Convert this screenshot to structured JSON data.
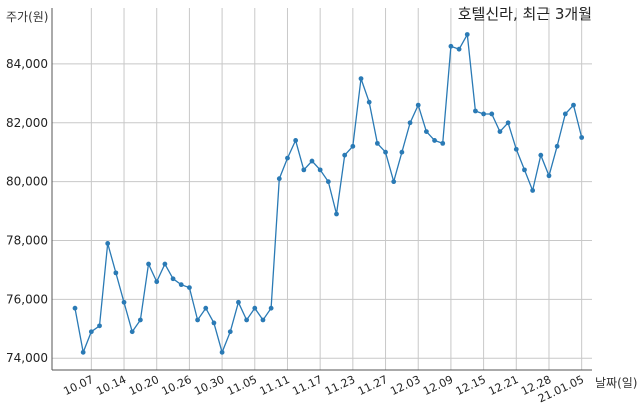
{
  "chart_data": {
    "type": "line",
    "title": "호텔신라, 최근 3개월",
    "ylabel": "주가(원)",
    "xlabel": "날짜(일)",
    "ylim": [
      73600,
      85900
    ],
    "yticks": [
      74000,
      76000,
      78000,
      80000,
      82000,
      84000
    ],
    "ytick_labels": [
      "74,000",
      "76,000",
      "78,000",
      "80,000",
      "82,000",
      "84,000"
    ],
    "xtick_labels": [
      "10.07",
      "10.14",
      "10.20",
      "10.26",
      "10.30",
      "11.05",
      "11.11",
      "11.17",
      "11.23",
      "11.27",
      "12.03",
      "12.09",
      "12.15",
      "12.21",
      "12.28",
      "21.01.05"
    ],
    "xtick_positions": [
      2,
      6,
      10,
      14,
      18,
      22,
      26,
      30,
      34,
      38,
      42,
      46,
      50,
      54,
      58,
      62
    ],
    "grid": true,
    "color": "#2a7ab5",
    "values": [
      75700,
      74200,
      74900,
      75100,
      77900,
      76900,
      75900,
      74900,
      75300,
      77200,
      76600,
      77200,
      76700,
      76500,
      76400,
      75300,
      75700,
      75200,
      74200,
      74900,
      75900,
      75300,
      75700,
      75300,
      75700,
      80100,
      80800,
      81400,
      80400,
      80700,
      80400,
      80000,
      78900,
      80900,
      81200,
      83500,
      82700,
      81300,
      81000,
      80000,
      81000,
      82000,
      82600,
      81700,
      81400,
      81300,
      84600,
      84500,
      85000,
      82400,
      82300,
      82300,
      81700,
      82000,
      81100,
      80400,
      79700,
      80900,
      80200,
      81200,
      82300,
      82600,
      81500
    ]
  }
}
